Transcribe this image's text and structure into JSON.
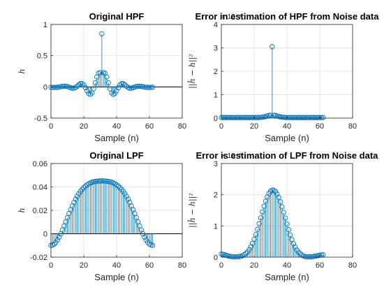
{
  "chart_data": [
    {
      "type": "stem",
      "title": "Original HPF",
      "xlabel": "Sample (n)",
      "ylabel": "h",
      "xlim": [
        0,
        80
      ],
      "ylim": [
        -0.5,
        1
      ],
      "xticks": [
        0,
        20,
        40,
        60,
        80
      ],
      "yticks": [
        -0.5,
        0,
        0.5,
        1
      ],
      "ytick_labels": [
        "-0.5",
        "0",
        "0.5",
        "1"
      ],
      "exponent_label": "",
      "grid": true,
      "series": [
        {
          "color": "#0072BD",
          "x": [
            0,
            1,
            2,
            3,
            4,
            5,
            6,
            7,
            8,
            9,
            10,
            11,
            12,
            13,
            14,
            15,
            16,
            17,
            18,
            19,
            20,
            21,
            22,
            23,
            24,
            25,
            26,
            27,
            28,
            29,
            30,
            31,
            32,
            33,
            34,
            35,
            36,
            37,
            38,
            39,
            40,
            41,
            42,
            43,
            44,
            45,
            46,
            47,
            48,
            49,
            50,
            51,
            52,
            53,
            54,
            55,
            56,
            57,
            58,
            59,
            60,
            61,
            62
          ],
          "y": [
            -0.006,
            -0.008,
            -0.009,
            -0.009,
            -0.007,
            -0.003,
            0.003,
            0.008,
            0.011,
            0.01,
            0.005,
            -0.004,
            -0.014,
            -0.021,
            -0.021,
            -0.01,
            0.01,
            0.034,
            0.052,
            0.052,
            0.03,
            -0.013,
            -0.064,
            -0.106,
            -0.121,
            -0.097,
            -0.03,
            0.064,
            0.158,
            0.219,
            0.228,
            0.85,
            0.228,
            0.219,
            0.158,
            0.064,
            -0.03,
            -0.097,
            -0.121,
            -0.106,
            -0.064,
            -0.013,
            0.03,
            0.052,
            0.052,
            0.034,
            0.01,
            -0.01,
            -0.021,
            -0.021,
            -0.014,
            -0.004,
            0.005,
            0.01,
            0.011,
            0.008,
            0.003,
            -0.003,
            -0.007,
            -0.009,
            -0.009,
            -0.008,
            -0.006
          ]
        }
      ]
    },
    {
      "type": "stem",
      "title": "Error in estimation of HPF from Noise data",
      "xlabel": "Sample (n)",
      "ylabel": "||ĥ − h||²",
      "xlim": [
        0,
        80
      ],
      "ylim": [
        0,
        4
      ],
      "xticks": [
        0,
        20,
        40,
        60,
        80
      ],
      "yticks": [
        0,
        1,
        2,
        3,
        4
      ],
      "ytick_labels": [
        "0",
        "1",
        "2",
        "3",
        "4"
      ],
      "exponent_label": "× 10⁻⁴",
      "grid": true,
      "series": [
        {
          "color": "#0072BD",
          "x": [
            0,
            1,
            2,
            3,
            4,
            5,
            6,
            7,
            8,
            9,
            10,
            11,
            12,
            13,
            14,
            15,
            16,
            17,
            18,
            19,
            20,
            21,
            22,
            23,
            24,
            25,
            26,
            27,
            28,
            29,
            30,
            31,
            32,
            33,
            34,
            35,
            36,
            37,
            38,
            39,
            40,
            41,
            42,
            43,
            44,
            45,
            46,
            47,
            48,
            49,
            50,
            51,
            52,
            53,
            54,
            55,
            56,
            57,
            58,
            59,
            60,
            61,
            62
          ],
          "y": [
            0.02,
            0.02,
            0.02,
            0.02,
            0.02,
            0.02,
            0.02,
            0.02,
            0.02,
            0.02,
            0.02,
            0.02,
            0.02,
            0.02,
            0.02,
            0.02,
            0.02,
            0.02,
            0.02,
            0.02,
            0.02,
            0.02,
            0.02,
            0.02,
            0.03,
            0.04,
            0.05,
            0.07,
            0.09,
            0.11,
            0.12,
            3.05,
            0.12,
            0.11,
            0.09,
            0.07,
            0.05,
            0.04,
            0.03,
            0.02,
            0.02,
            0.02,
            0.02,
            0.02,
            0.02,
            0.02,
            0.02,
            0.02,
            0.02,
            0.02,
            0.02,
            0.02,
            0.02,
            0.02,
            0.02,
            0.02,
            0.02,
            0.02,
            0.02,
            0.02,
            0.02,
            0.02,
            0.02
          ]
        }
      ]
    },
    {
      "type": "stem",
      "title": "Original LPF",
      "xlabel": "Sample (n)",
      "ylabel": "h",
      "xlim": [
        0,
        80
      ],
      "ylim": [
        -0.02,
        0.06
      ],
      "xticks": [
        0,
        20,
        40,
        60,
        80
      ],
      "yticks": [
        -0.02,
        0,
        0.02,
        0.04,
        0.06
      ],
      "ytick_labels": [
        "-0.02",
        "0",
        "0.02",
        "0.04",
        "0.06"
      ],
      "exponent_label": "",
      "grid": true,
      "series": [
        {
          "color": "#0072BD",
          "x": [
            0,
            1,
            2,
            3,
            4,
            5,
            6,
            7,
            8,
            9,
            10,
            11,
            12,
            13,
            14,
            15,
            16,
            17,
            18,
            19,
            20,
            21,
            22,
            23,
            24,
            25,
            26,
            27,
            28,
            29,
            30,
            31,
            32,
            33,
            34,
            35,
            36,
            37,
            38,
            39,
            40,
            41,
            42,
            43,
            44,
            45,
            46,
            47,
            48,
            49,
            50,
            51,
            52,
            53,
            54,
            55,
            56,
            57,
            58,
            59,
            60,
            61,
            62
          ],
          "y": [
            -0.0099,
            -0.0096,
            -0.0088,
            -0.0073,
            -0.0053,
            -0.0029,
            0.0,
            0.0032,
            0.0066,
            0.0101,
            0.0137,
            0.0172,
            0.0205,
            0.0237,
            0.0267,
            0.0295,
            0.032,
            0.0342,
            0.0362,
            0.0379,
            0.0394,
            0.0407,
            0.0418,
            0.0427,
            0.0434,
            0.044,
            0.0444,
            0.0447,
            0.0449,
            0.045,
            0.0451,
            0.0452,
            0.0451,
            0.045,
            0.0449,
            0.0447,
            0.0444,
            0.044,
            0.0434,
            0.0427,
            0.0418,
            0.0407,
            0.0394,
            0.0379,
            0.0362,
            0.0342,
            0.032,
            0.0295,
            0.0267,
            0.0237,
            0.0205,
            0.0172,
            0.0137,
            0.0101,
            0.0066,
            0.0032,
            0.0,
            -0.0029,
            -0.0053,
            -0.0073,
            -0.0088,
            -0.0096,
            -0.0099
          ]
        }
      ]
    },
    {
      "type": "stem",
      "title": "Error is estimation of LPF from Noise data",
      "xlabel": "Sample (n)",
      "ylabel": "||ĥ − h||²",
      "xlim": [
        0,
        80
      ],
      "ylim": [
        0,
        3
      ],
      "xticks": [
        0,
        20,
        40,
        60,
        80
      ],
      "yticks": [
        0,
        1,
        2,
        3
      ],
      "ytick_labels": [
        "0",
        "1",
        "2",
        "3"
      ],
      "exponent_label": "× 10⁻⁸",
      "grid": true,
      "series": [
        {
          "color": "#0072BD",
          "x": [
            0,
            1,
            2,
            3,
            4,
            5,
            6,
            7,
            8,
            9,
            10,
            11,
            12,
            13,
            14,
            15,
            16,
            17,
            18,
            19,
            20,
            21,
            22,
            23,
            24,
            25,
            26,
            27,
            28,
            29,
            30,
            31,
            32,
            33,
            34,
            35,
            36,
            37,
            38,
            39,
            40,
            41,
            42,
            43,
            44,
            45,
            46,
            47,
            48,
            49,
            50,
            51,
            52,
            53,
            54,
            55,
            56,
            57,
            58,
            59,
            60,
            61,
            62
          ],
          "y": [
            0.1,
            0.09,
            0.08,
            0.06,
            0.04,
            0.03,
            0.02,
            0.01,
            0.01,
            0.01,
            0.01,
            0.02,
            0.03,
            0.05,
            0.08,
            0.12,
            0.17,
            0.24,
            0.33,
            0.44,
            0.57,
            0.72,
            0.89,
            1.07,
            1.26,
            1.45,
            1.63,
            1.79,
            1.93,
            2.04,
            2.11,
            2.15,
            2.14,
            2.1,
            2.02,
            1.91,
            1.77,
            1.61,
            1.43,
            1.25,
            1.06,
            0.88,
            0.71,
            0.56,
            0.43,
            0.32,
            0.23,
            0.16,
            0.11,
            0.07,
            0.04,
            0.02,
            0.01,
            0.01,
            0.01,
            0.01,
            0.02,
            0.03,
            0.04,
            0.05,
            0.06,
            0.07,
            0.08
          ]
        }
      ]
    }
  ]
}
